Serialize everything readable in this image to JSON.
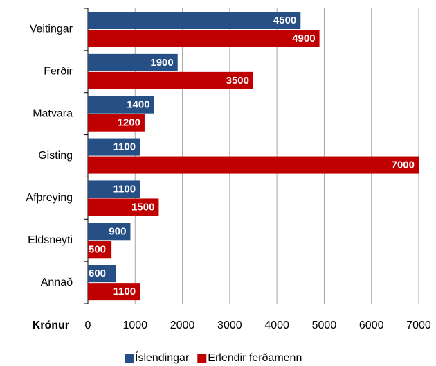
{
  "chart_data": {
    "type": "barh",
    "categories": [
      "Veitingar",
      "Ferðir",
      "Matvara",
      "Gisting",
      "Afþreying",
      "Eldsneyti",
      "Annað"
    ],
    "series": [
      {
        "name": "Íslendingar",
        "color": "#264f86",
        "values": [
          4500,
          1900,
          1400,
          1100,
          1100,
          900,
          600
        ]
      },
      {
        "name": "Erlendir ferðamenn",
        "color": "#c00000",
        "values": [
          4900,
          3500,
          1200,
          7000,
          1500,
          500,
          1100
        ]
      }
    ],
    "xlabel": "Krónur",
    "xlim": [
      0,
      7000
    ],
    "xticks": [
      0,
      1000,
      2000,
      3000,
      4000,
      5000,
      6000,
      7000
    ],
    "grid": true,
    "legend": "bottom"
  }
}
